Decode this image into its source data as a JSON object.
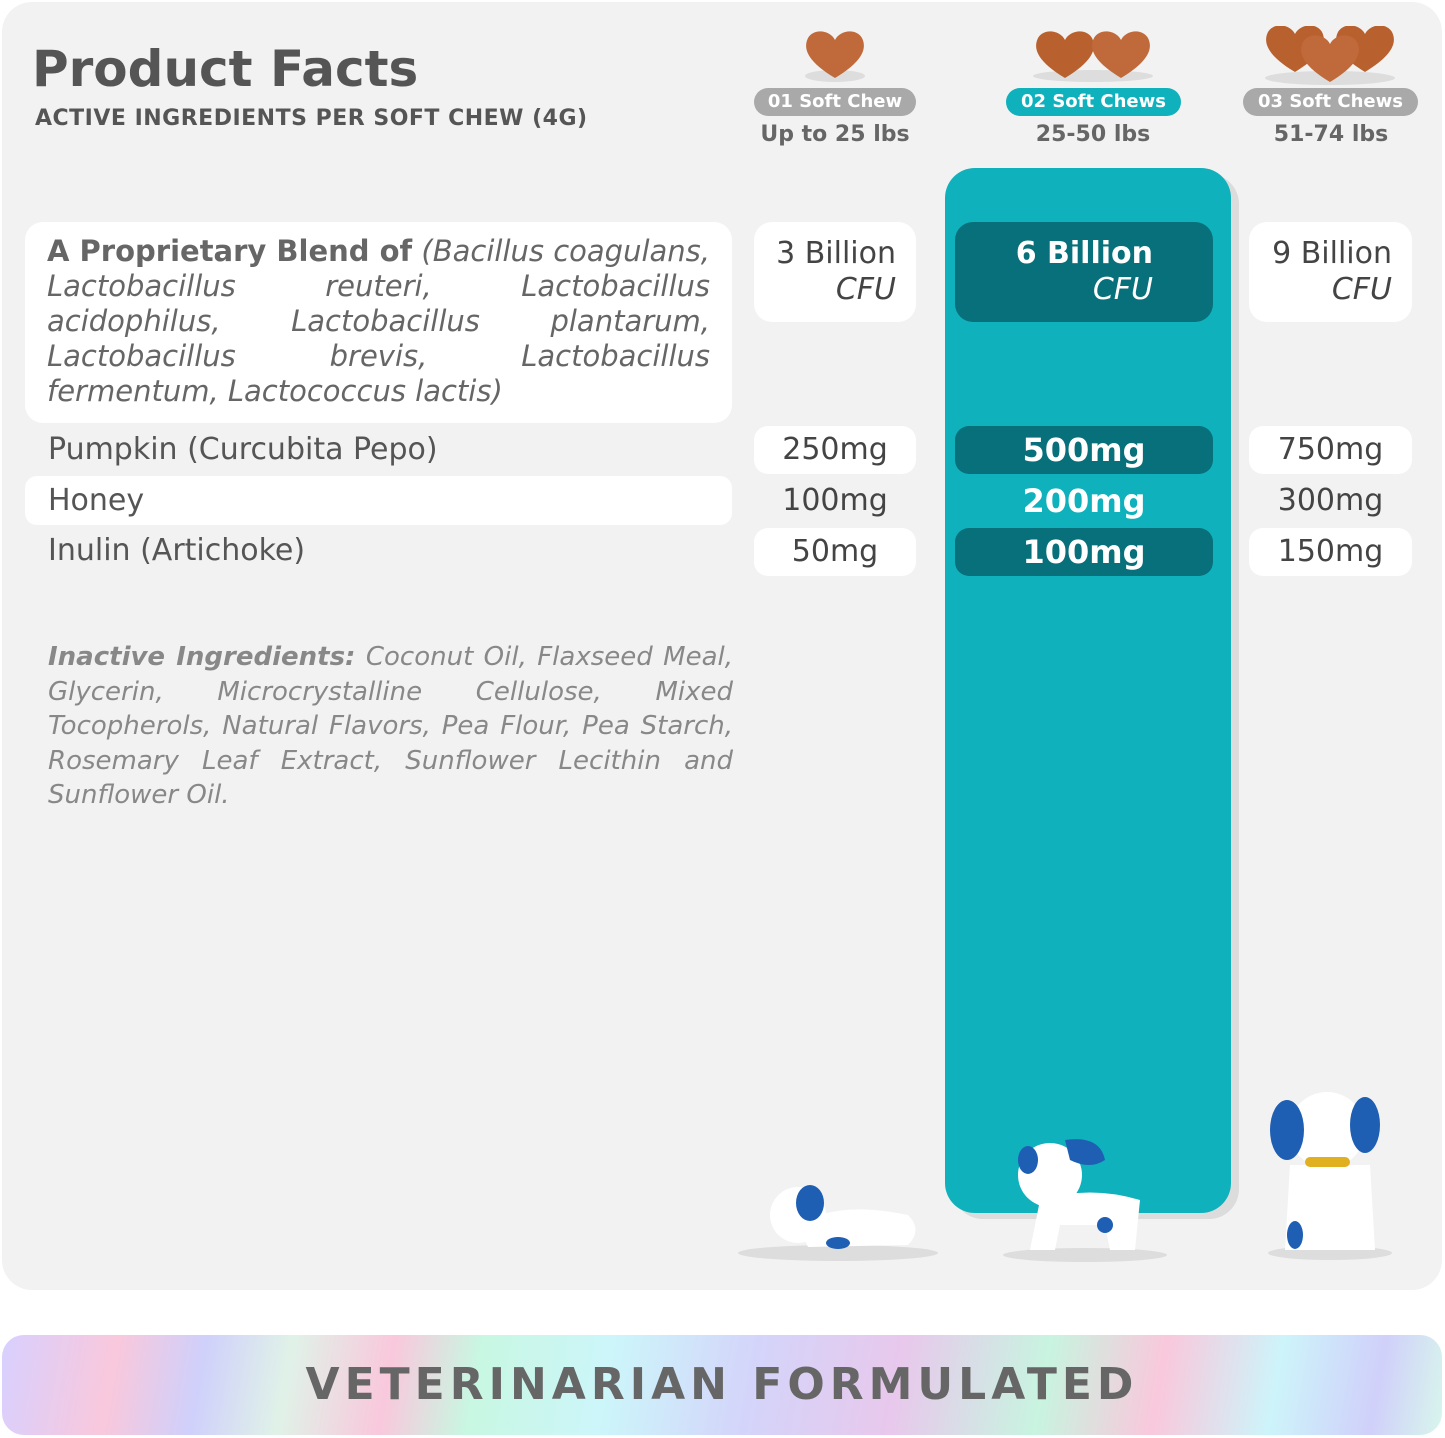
{
  "header": {
    "title": "Product Facts",
    "subtitle": "ACTIVE INGREDIENTS PER SOFT CHEW (4G)"
  },
  "columns": [
    {
      "label": "01 Soft Chew",
      "weight": "Up to 25 lbs",
      "count": 1,
      "highlighted": false
    },
    {
      "label": "02 Soft Chews",
      "weight": "25-50 lbs",
      "count": 2,
      "highlighted": true
    },
    {
      "label": "03 Soft Chews",
      "weight": "51-74 lbs",
      "count": 3,
      "highlighted": false
    }
  ],
  "blend": {
    "lead": "A Proprietary Blend of",
    "species": "(Bacillus coagulans, Lactobacillus reuteri, Lactobacillus acidophilus, Lactobacillus plantarum, Lactobacillus brevis, Lactobacillus fermentum, Lactococcus lactis)",
    "values": [
      {
        "amount": "3 Billion",
        "unit": "CFU"
      },
      {
        "amount": "6 Billion",
        "unit": "CFU"
      },
      {
        "amount": "9 Billion",
        "unit": "CFU"
      }
    ]
  },
  "rows": [
    {
      "name": "Pumpkin (Curcubita Pepo)",
      "values": [
        "250mg",
        "500mg",
        "750mg"
      ]
    },
    {
      "name": "Honey",
      "values": [
        "100mg",
        "200mg",
        "300mg"
      ]
    },
    {
      "name": "Inulin (Artichoke)",
      "values": [
        "50mg",
        "100mg",
        "150mg"
      ]
    }
  ],
  "inactive": {
    "label": "Inactive Ingredients:",
    "text": " Coconut Oil, Flaxseed Meal, Glycerin, Microcrystalline Cellulose, Mixed Tocopherols, Natural Flavors, Pea Flour, Pea Starch, Rosemary Leaf Extract, Sunflower Lecithin and Sunflower Oil."
  },
  "banner": "VETERINARIAN FORMULATED",
  "colors": {
    "teal": "#0fb1bc",
    "dark_teal": "#08707a",
    "pill_gray": "#a9a9a9",
    "chew": "#c0693a"
  }
}
